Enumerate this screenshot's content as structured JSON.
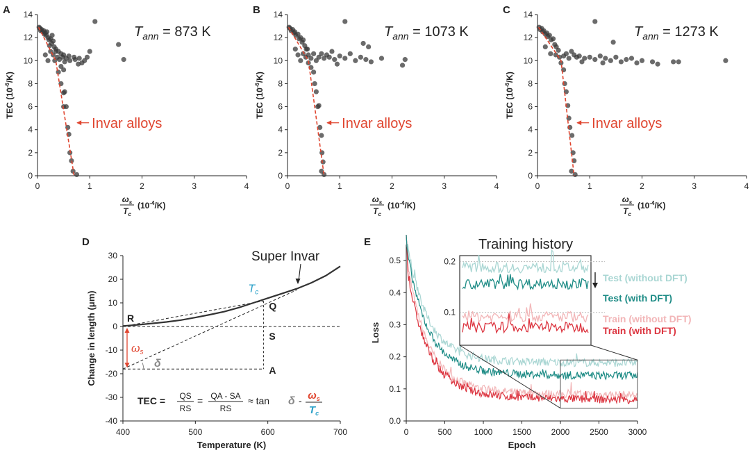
{
  "colors": {
    "axis": "#222222",
    "dot": "#3a3a3a",
    "invar": "#e0452f",
    "tc_blue": "#2aa0c8",
    "curve": "#333333",
    "test_no_dft": "#a9d6d3",
    "test_dft": "#1e8c86",
    "train_no_dft": "#f2b5b7",
    "train_dft": "#dc3540",
    "gray": "#888888"
  },
  "panels_abc": [
    {
      "letter": "A",
      "tann_prefix": "T",
      "tann_sub": "ann",
      "tann_value": " = 873 K",
      "annotation": "Invar alloys",
      "ylabel_main": "TEC (10",
      "ylabel_sup": "-6",
      "ylabel_tail": "/K)",
      "xlabel_num": "ω",
      "xlabel_num_sub": "s",
      "xlabel_den": "T",
      "xlabel_den_sub": "c",
      "xlabel_unit_main": "(10",
      "xlabel_unit_sup": "-4",
      "xlabel_unit_tail": "/K)",
      "x_ticks": [
        "0",
        "1",
        "2",
        "3",
        "4"
      ],
      "y_ticks": [
        "0",
        "2",
        "4",
        "6",
        "8",
        "10",
        "12",
        "14"
      ],
      "invar_line": [
        [
          0.02,
          12.9
        ],
        [
          0.35,
          10.0
        ],
        [
          0.7,
          0.0
        ]
      ],
      "points": [
        [
          0.03,
          12.9
        ],
        [
          0.05,
          12.8
        ],
        [
          0.06,
          12.6
        ],
        [
          0.08,
          12.7
        ],
        [
          0.1,
          12.5
        ],
        [
          0.12,
          12.6
        ],
        [
          0.13,
          12.3
        ],
        [
          0.15,
          12.4
        ],
        [
          0.17,
          12.2
        ],
        [
          0.18,
          12.5
        ],
        [
          0.2,
          12.0
        ],
        [
          0.22,
          11.8
        ],
        [
          0.25,
          11.9
        ],
        [
          0.27,
          11.5
        ],
        [
          0.3,
          11.7
        ],
        [
          0.32,
          11.2
        ],
        [
          0.35,
          11.0
        ],
        [
          0.28,
          12.2
        ],
        [
          0.23,
          11.3
        ],
        [
          0.3,
          10.5
        ],
        [
          0.33,
          10.0
        ],
        [
          0.38,
          10.3
        ],
        [
          0.4,
          10.8
        ],
        [
          0.42,
          10.1
        ],
        [
          0.45,
          10.6
        ],
        [
          0.48,
          10.3
        ],
        [
          0.5,
          10.5
        ],
        [
          0.52,
          9.9
        ],
        [
          0.55,
          10.2
        ],
        [
          0.6,
          10.4
        ],
        [
          0.62,
          10.0
        ],
        [
          0.7,
          10.3
        ],
        [
          0.72,
          10.1
        ],
        [
          0.8,
          10.2
        ],
        [
          0.85,
          9.8
        ],
        [
          0.9,
          10.0
        ],
        [
          0.15,
          10.5
        ],
        [
          0.2,
          10.0
        ],
        [
          0.25,
          10.8
        ],
        [
          0.35,
          10.8
        ],
        [
          0.45,
          9.5
        ],
        [
          0.5,
          9.2
        ],
        [
          0.4,
          9.0
        ],
        [
          0.45,
          8.0
        ],
        [
          0.5,
          7.2
        ],
        [
          0.52,
          7.3
        ],
        [
          0.5,
          6.0
        ],
        [
          0.55,
          6.0
        ],
        [
          0.58,
          4.2
        ],
        [
          0.6,
          3.6
        ],
        [
          0.62,
          2.0
        ],
        [
          0.65,
          1.3
        ],
        [
          0.68,
          0.4
        ],
        [
          0.75,
          0.1
        ],
        [
          1.1,
          13.4
        ],
        [
          1.55,
          11.4
        ],
        [
          1.65,
          10.1
        ],
        [
          1.0,
          10.8
        ],
        [
          0.95,
          10.3
        ],
        [
          0.78,
          9.7
        ]
      ]
    },
    {
      "letter": "B",
      "tann_prefix": "T",
      "tann_sub": "ann",
      "tann_value": " = 1073 K",
      "annotation": "Invar alloys",
      "ylabel_main": "TEC (10",
      "ylabel_sup": "-6",
      "ylabel_tail": "/K)",
      "xlabel_num": "ω",
      "xlabel_num_sub": "s",
      "xlabel_den": "T",
      "xlabel_den_sub": "c",
      "xlabel_unit_main": "(10",
      "xlabel_unit_sup": "-4",
      "xlabel_unit_tail": "/K)",
      "x_ticks": [
        "0",
        "1",
        "2",
        "3",
        "4"
      ],
      "y_ticks": [
        "0",
        "2",
        "4",
        "6",
        "8",
        "10",
        "12",
        "14"
      ],
      "invar_line": [
        [
          0.02,
          12.9
        ],
        [
          0.4,
          10.0
        ],
        [
          0.7,
          0.0
        ]
      ],
      "points": [
        [
          0.03,
          12.9
        ],
        [
          0.05,
          12.8
        ],
        [
          0.07,
          12.6
        ],
        [
          0.1,
          12.7
        ],
        [
          0.12,
          12.4
        ],
        [
          0.14,
          12.5
        ],
        [
          0.16,
          12.2
        ],
        [
          0.2,
          12.3
        ],
        [
          0.22,
          11.9
        ],
        [
          0.25,
          12.0
        ],
        [
          0.28,
          11.6
        ],
        [
          0.3,
          11.8
        ],
        [
          0.33,
          11.3
        ],
        [
          0.36,
          11.0
        ],
        [
          0.3,
          10.6
        ],
        [
          0.35,
          10.3
        ],
        [
          0.4,
          10.5
        ],
        [
          0.45,
          10.2
        ],
        [
          0.5,
          10.6
        ],
        [
          0.55,
          10.0
        ],
        [
          0.6,
          10.3
        ],
        [
          0.65,
          10.6
        ],
        [
          0.7,
          10.2
        ],
        [
          0.75,
          10.5
        ],
        [
          0.8,
          10.3
        ],
        [
          0.9,
          10.1
        ],
        [
          1.0,
          10.4
        ],
        [
          1.1,
          10.2
        ],
        [
          1.2,
          10.6
        ],
        [
          1.3,
          10.0
        ],
        [
          1.4,
          10.3
        ],
        [
          1.5,
          10.1
        ],
        [
          1.6,
          9.9
        ],
        [
          1.8,
          10.2
        ],
        [
          2.2,
          9.6
        ],
        [
          2.25,
          10.1
        ],
        [
          1.1,
          13.4
        ],
        [
          1.45,
          11.5
        ],
        [
          1.55,
          11.2
        ],
        [
          0.2,
          10.5
        ],
        [
          0.25,
          10.0
        ],
        [
          0.45,
          9.4
        ],
        [
          0.5,
          9.0
        ],
        [
          0.52,
          8.0
        ],
        [
          0.55,
          7.3
        ],
        [
          0.58,
          6.0
        ],
        [
          0.6,
          6.1
        ],
        [
          0.62,
          4.2
        ],
        [
          0.65,
          3.5
        ],
        [
          0.66,
          2.0
        ],
        [
          0.68,
          1.2
        ],
        [
          0.65,
          0.4
        ],
        [
          0.7,
          0.1
        ],
        [
          0.15,
          11.0
        ],
        [
          0.38,
          11.0
        ],
        [
          0.85,
          10.8
        ],
        [
          0.95,
          9.7
        ],
        [
          0.4,
          9.8
        ]
      ]
    },
    {
      "letter": "C",
      "tann_prefix": "T",
      "tann_sub": "ann",
      "tann_value": " = 1273 K",
      "annotation": "Invar alloys",
      "ylabel_main": "TEC (10",
      "ylabel_sup": "-6",
      "ylabel_tail": "/K)",
      "xlabel_num": "ω",
      "xlabel_num_sub": "s",
      "xlabel_den": "T",
      "xlabel_den_sub": "c",
      "xlabel_unit_main": "(10",
      "xlabel_unit_sup": "-4",
      "xlabel_unit_tail": "/K)",
      "x_ticks": [
        "0",
        "1",
        "2",
        "3",
        "4"
      ],
      "y_ticks": [
        "0",
        "2",
        "4",
        "6",
        "8",
        "10",
        "12",
        "14"
      ],
      "invar_line": [
        [
          0.02,
          12.9
        ],
        [
          0.45,
          10.0
        ],
        [
          0.7,
          0.0
        ]
      ],
      "points": [
        [
          0.03,
          12.9
        ],
        [
          0.05,
          12.7
        ],
        [
          0.08,
          12.8
        ],
        [
          0.1,
          12.5
        ],
        [
          0.12,
          12.6
        ],
        [
          0.15,
          12.3
        ],
        [
          0.18,
          12.4
        ],
        [
          0.2,
          12.1
        ],
        [
          0.23,
          12.2
        ],
        [
          0.26,
          11.8
        ],
        [
          0.3,
          11.9
        ],
        [
          0.33,
          11.4
        ],
        [
          0.36,
          11.2
        ],
        [
          0.4,
          10.9
        ],
        [
          0.35,
          10.5
        ],
        [
          0.42,
          10.3
        ],
        [
          0.5,
          10.4
        ],
        [
          0.55,
          10.6
        ],
        [
          0.6,
          10.2
        ],
        [
          0.7,
          10.5
        ],
        [
          0.75,
          10.3
        ],
        [
          0.8,
          10.4
        ],
        [
          0.9,
          10.2
        ],
        [
          1.0,
          10.3
        ],
        [
          1.1,
          10.1
        ],
        [
          1.2,
          10.4
        ],
        [
          1.3,
          10.2
        ],
        [
          1.4,
          10.0
        ],
        [
          1.5,
          10.3
        ],
        [
          1.6,
          9.9
        ],
        [
          1.7,
          10.1
        ],
        [
          1.8,
          10.2
        ],
        [
          1.9,
          9.8
        ],
        [
          2.0,
          10.0
        ],
        [
          2.2,
          9.9
        ],
        [
          2.3,
          9.7
        ],
        [
          2.6,
          9.9
        ],
        [
          2.7,
          9.9
        ],
        [
          3.6,
          10.0
        ],
        [
          1.1,
          13.4
        ],
        [
          1.45,
          11.6
        ],
        [
          0.25,
          10.6
        ],
        [
          0.45,
          9.8
        ],
        [
          0.5,
          9.2
        ],
        [
          0.52,
          8.0
        ],
        [
          0.55,
          7.3
        ],
        [
          0.58,
          6.1
        ],
        [
          0.6,
          5.0
        ],
        [
          0.62,
          4.2
        ],
        [
          0.66,
          3.5
        ],
        [
          0.68,
          2.0
        ],
        [
          0.7,
          1.3
        ],
        [
          0.65,
          0.4
        ],
        [
          0.72,
          0.1
        ],
        [
          0.15,
          11.2
        ],
        [
          0.65,
          10.8
        ],
        [
          0.85,
          9.9
        ],
        [
          1.25,
          9.8
        ]
      ]
    }
  ],
  "panel_d": {
    "letter": "D",
    "title": "Super Invar",
    "ylabel": "Change in length (μm)",
    "xlabel": "Temperature (K)",
    "x_ticks": [
      "400",
      "500",
      "600",
      "700"
    ],
    "y_ticks": [
      "30",
      "20",
      "10",
      "0",
      "-10",
      "-20",
      "-30",
      "-40"
    ],
    "label_R": "R",
    "label_Q": "Q",
    "label_S": "S",
    "label_A": "A",
    "tc_label": "T",
    "tc_sub": "c",
    "omega_label": "ω",
    "omega_sub": "s",
    "delta_label": "δ",
    "formula_tec": "TEC =",
    "formula_qs": "QS",
    "formula_rs": "RS",
    "formula_eq": "=",
    "formula_qasa": "QA - SA",
    "formula_rs2": "RS",
    "formula_approx": "≈ tan",
    "formula_delta": "δ",
    "formula_minus": "-",
    "formula_omega": "ω",
    "formula_omega_sub": "s",
    "formula_tc": "T",
    "formula_tc_sub": "c",
    "curve": [
      [
        400,
        0.2
      ],
      [
        420,
        0.7
      ],
      [
        440,
        1.3
      ],
      [
        460,
        1.9
      ],
      [
        480,
        2.7
      ],
      [
        500,
        3.8
      ],
      [
        520,
        5.0
      ],
      [
        540,
        6.3
      ],
      [
        560,
        8.0
      ],
      [
        580,
        10.0
      ],
      [
        600,
        12.0
      ],
      [
        620,
        14.0
      ],
      [
        640,
        16.0
      ],
      [
        660,
        18.5
      ],
      [
        680,
        21.5
      ],
      [
        700,
        25.5
      ]
    ]
  },
  "panel_e": {
    "letter": "E",
    "title": "Training history",
    "ylabel": "Loss",
    "xlabel": "Epoch",
    "x_ticks": [
      "0",
      "500",
      "1000",
      "1500",
      "2000",
      "2500",
      "3000"
    ],
    "y_ticks": [
      "0.0",
      "0.1",
      "0.2",
      "0.3",
      "0.4",
      "0.5"
    ],
    "inset_y_ticks": [
      "0.2",
      "0.1"
    ],
    "legend": [
      "Test (without DFT)",
      "Test (with DFT)",
      "Train (without DFT)",
      "Train (with DFT)"
    ],
    "series": [
      {
        "name": "Test (without DFT)",
        "final": 0.18
      },
      {
        "name": "Test (with DFT)",
        "final": 0.14
      },
      {
        "name": "Train (without DFT)",
        "final": 0.08
      },
      {
        "name": "Train (with DFT)",
        "final": 0.065
      }
    ]
  },
  "chart_data": [
    {
      "type": "scatter",
      "title": "Tann = 873 K",
      "xlabel": "ωs/Tc (10^-4/K)",
      "ylabel": "TEC (10^-6/K)",
      "xlim": [
        0,
        4
      ],
      "ylim": [
        0,
        14
      ]
    },
    {
      "type": "scatter",
      "title": "Tann = 1073 K",
      "xlabel": "ωs/Tc (10^-4/K)",
      "ylabel": "TEC (10^-6/K)",
      "xlim": [
        0,
        4
      ],
      "ylim": [
        0,
        14
      ]
    },
    {
      "type": "scatter",
      "title": "Tann = 1273 K",
      "xlabel": "ωs/Tc (10^-4/K)",
      "ylabel": "TEC (10^-6/K)",
      "xlim": [
        0,
        4
      ],
      "ylim": [
        0,
        14
      ]
    },
    {
      "type": "line",
      "title": "Super Invar",
      "xlabel": "Temperature (K)",
      "ylabel": "Change in length (μm)",
      "xlim": [
        400,
        700
      ],
      "ylim": [
        -40,
        30
      ]
    },
    {
      "type": "line",
      "title": "Training history",
      "xlabel": "Epoch",
      "ylabel": "Loss",
      "xlim": [
        0,
        3000
      ],
      "ylim": [
        0,
        0.55
      ]
    }
  ]
}
